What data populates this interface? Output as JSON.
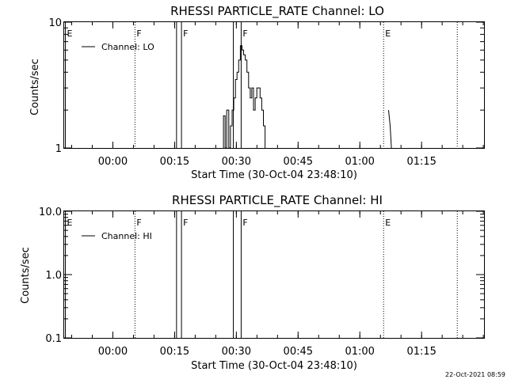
{
  "footer": {
    "timestamp": "22-Oct-2021 08:59"
  },
  "chart_data": [
    {
      "type": "line",
      "title": "RHESSI PARTICLE_RATE Channel: LO",
      "xlabel": "Start Time (30-Oct-04 23:48:10)",
      "ylabel": "Counts/sec",
      "x_units": "minutes after 30-Oct-04 23:48:10",
      "xlim": [
        0,
        102
      ],
      "y_scale": "log",
      "ylim": [
        1,
        10
      ],
      "x_ticks": [
        {
          "t": 11.83,
          "label": "00:00"
        },
        {
          "t": 26.83,
          "label": "00:15"
        },
        {
          "t": 41.83,
          "label": "00:30"
        },
        {
          "t": 56.83,
          "label": "00:45"
        },
        {
          "t": 71.83,
          "label": "01:00"
        },
        {
          "t": 86.83,
          "label": "01:15"
        }
      ],
      "y_ticks": [
        {
          "v": 1,
          "label": "1"
        },
        {
          "v": 10,
          "label": "10"
        }
      ],
      "legend": {
        "position": "top-left",
        "entries": [
          "Channel: LO"
        ]
      },
      "event_lines": [
        {
          "t": 0.3,
          "label": "E",
          "style": "solid"
        },
        {
          "t": 17.2,
          "label": "F",
          "style": "dotted"
        },
        {
          "t": 27.3,
          "label": "",
          "style": "solid"
        },
        {
          "t": 28.5,
          "label": "F",
          "style": "solid"
        },
        {
          "t": 41.1,
          "label": "",
          "style": "solid"
        },
        {
          "t": 43.0,
          "label": "F",
          "style": "solid"
        },
        {
          "t": 77.6,
          "label": "E",
          "style": "dotted"
        },
        {
          "t": 95.5,
          "label": "",
          "style": "dotted"
        }
      ],
      "series": [
        {
          "name": "Channel: LO",
          "x": [
            38.7,
            38.7,
            39.1,
            39.1,
            39.5,
            39.5,
            40.0,
            40.0,
            40.4,
            40.4,
            40.8,
            40.8,
            41.2,
            41.2,
            41.6,
            41.6,
            42.0,
            42.0,
            42.4,
            42.4,
            42.8,
            42.8,
            43.2,
            43.2,
            43.6,
            43.6,
            44.0,
            44.0,
            44.4,
            44.4,
            44.8,
            44.8,
            45.2,
            45.2,
            45.6,
            45.6,
            46.0,
            46.0,
            46.4,
            46.4,
            46.8,
            46.8,
            47.2,
            47.2,
            47.6,
            47.6,
            48.0,
            48.0,
            48.4,
            48.4,
            48.8,
            48.8
          ],
          "y": [
            1,
            1.8,
            1.8,
            1,
            1,
            2,
            2,
            1,
            1,
            1.5,
            1.5,
            2,
            2,
            2.5,
            2.5,
            3.5,
            3.5,
            4,
            4,
            5,
            5,
            6.5,
            6.5,
            6,
            6,
            5.5,
            5.5,
            5,
            5,
            4,
            4,
            3,
            3,
            2.5,
            2.5,
            3,
            3,
            2,
            2,
            2.5,
            2.5,
            3,
            3,
            3,
            3,
            2.5,
            2.5,
            2,
            2,
            1.5,
            1.5,
            1
          ]
        },
        {
          "name": "Channel: LO",
          "x": [
            78.8,
            79.2,
            79.5
          ],
          "y": [
            2,
            1.5,
            1
          ]
        }
      ]
    },
    {
      "type": "line",
      "title": "RHESSI PARTICLE_RATE Channel: HI",
      "xlabel": "Start Time (30-Oct-04 23:48:10)",
      "ylabel": "Counts/sec",
      "x_units": "minutes after 30-Oct-04 23:48:10",
      "xlim": [
        0,
        102
      ],
      "y_scale": "log",
      "ylim": [
        0.1,
        10
      ],
      "x_ticks": [
        {
          "t": 11.83,
          "label": "00:00"
        },
        {
          "t": 26.83,
          "label": "00:15"
        },
        {
          "t": 41.83,
          "label": "00:30"
        },
        {
          "t": 56.83,
          "label": "00:45"
        },
        {
          "t": 71.83,
          "label": "01:00"
        },
        {
          "t": 86.83,
          "label": "01:15"
        }
      ],
      "y_ticks": [
        {
          "v": 0.1,
          "label": "0.1"
        },
        {
          "v": 1,
          "label": "1.0"
        },
        {
          "v": 10,
          "label": "10.0"
        }
      ],
      "legend": {
        "position": "top-left",
        "entries": [
          "Channel: HI"
        ]
      },
      "event_lines": [
        {
          "t": 0.3,
          "label": "E",
          "style": "solid"
        },
        {
          "t": 17.2,
          "label": "F",
          "style": "dotted"
        },
        {
          "t": 27.3,
          "label": "",
          "style": "solid"
        },
        {
          "t": 28.5,
          "label": "F",
          "style": "solid"
        },
        {
          "t": 41.1,
          "label": "",
          "style": "solid"
        },
        {
          "t": 43.0,
          "label": "F",
          "style": "solid"
        },
        {
          "t": 77.6,
          "label": "E",
          "style": "dotted"
        },
        {
          "t": 95.5,
          "label": "",
          "style": "dotted"
        }
      ],
      "series": []
    }
  ]
}
